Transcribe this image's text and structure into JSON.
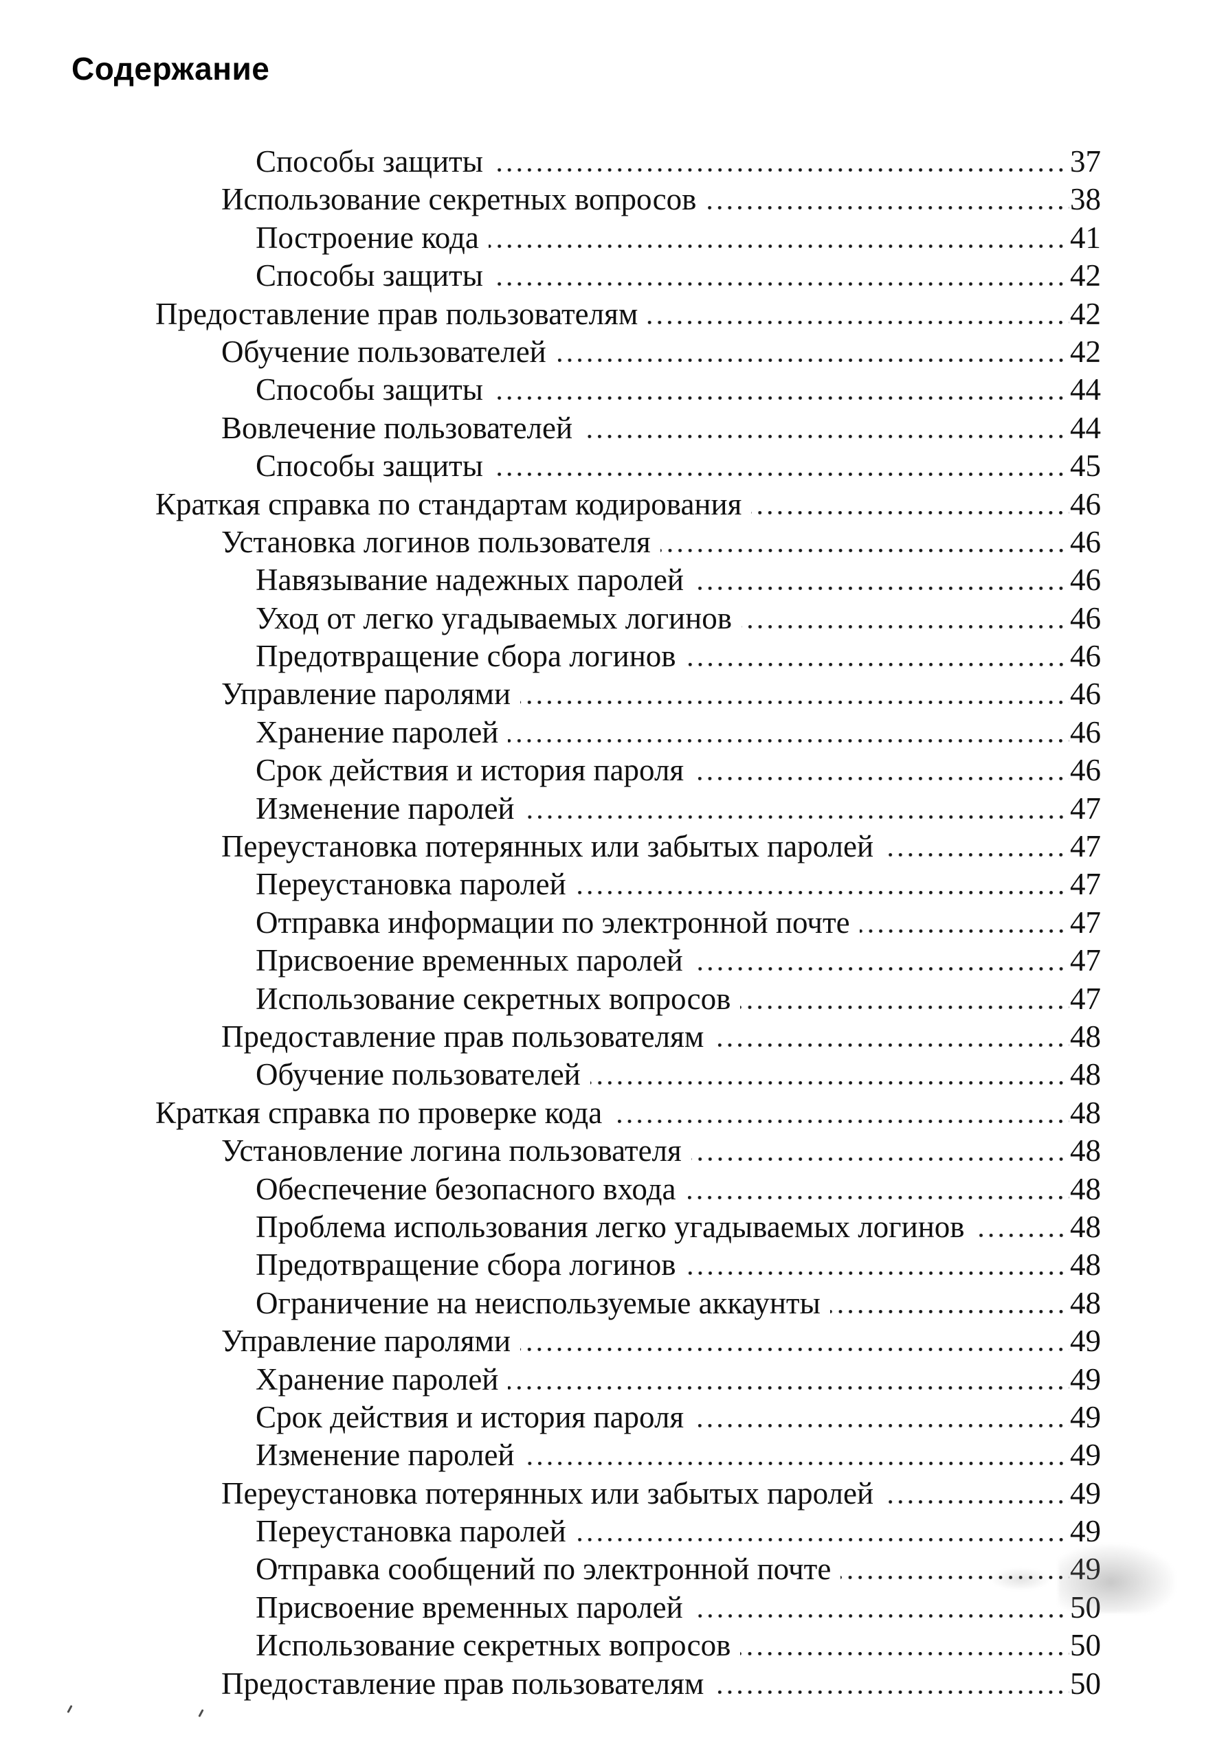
{
  "page": {
    "title": "Содержание"
  },
  "toc": {
    "entries": [
      {
        "level": 3,
        "label": "Способы защиты",
        "page": "37"
      },
      {
        "level": 2,
        "label": "Использование секретных вопросов",
        "page": "38"
      },
      {
        "level": 3,
        "label": "Построение кода",
        "page": "41"
      },
      {
        "level": 3,
        "label": "Способы защиты",
        "page": "42"
      },
      {
        "level": 1,
        "label": "Предоставление прав пользователям",
        "page": "42"
      },
      {
        "level": 2,
        "label": "Обучение пользователей",
        "page": "42"
      },
      {
        "level": 3,
        "label": "Способы защиты",
        "page": "44"
      },
      {
        "level": 2,
        "label": "Вовлечение пользователей",
        "page": "44"
      },
      {
        "level": 3,
        "label": "Способы защиты",
        "page": "45"
      },
      {
        "level": 1,
        "label": "Краткая справка по стандартам кодирования",
        "page": "46"
      },
      {
        "level": 2,
        "label": "Установка логинов пользователя",
        "page": "46"
      },
      {
        "level": 3,
        "label": "Навязывание надежных паролей",
        "page": "46"
      },
      {
        "level": 3,
        "label": "Уход от легко угадываемых логинов",
        "page": "46"
      },
      {
        "level": 3,
        "label": "Предотвращение сбора логинов",
        "page": "46"
      },
      {
        "level": 2,
        "label": "Управление паролями",
        "page": "46"
      },
      {
        "level": 3,
        "label": "Хранение паролей",
        "page": "46"
      },
      {
        "level": 3,
        "label": "Срок действия и история пароля",
        "page": "46"
      },
      {
        "level": 3,
        "label": "Изменение паролей",
        "page": "47"
      },
      {
        "level": 2,
        "label": "Переустановка потерянных или забытых паролей",
        "page": "47"
      },
      {
        "level": 3,
        "label": "Переустановка паролей",
        "page": "47"
      },
      {
        "level": 3,
        "label": "Отправка информации по электронной почте",
        "page": "47"
      },
      {
        "level": 3,
        "label": "Присвоение временных паролей",
        "page": "47"
      },
      {
        "level": 3,
        "label": "Использование секретных вопросов",
        "page": "47"
      },
      {
        "level": 2,
        "label": "Предоставление прав пользователям",
        "page": "48"
      },
      {
        "level": 3,
        "label": "Обучение пользователей",
        "page": "48"
      },
      {
        "level": 1,
        "label": "Краткая справка по проверке кода",
        "page": "48"
      },
      {
        "level": 2,
        "label": "Установление логина пользователя",
        "page": "48"
      },
      {
        "level": 3,
        "label": "Обеспечение безопасного входа",
        "page": "48"
      },
      {
        "level": 3,
        "label": "Проблема использования легко угадываемых логинов",
        "page": "48"
      },
      {
        "level": 3,
        "label": "Предотвращение сбора логинов",
        "page": "48"
      },
      {
        "level": 3,
        "label": "Ограничение на неиспользуемые аккаунты",
        "page": "48"
      },
      {
        "level": 2,
        "label": "Управление паролями",
        "page": "49"
      },
      {
        "level": 3,
        "label": "Хранение паролей",
        "page": "49"
      },
      {
        "level": 3,
        "label": "Срок действия и история пароля",
        "page": "49"
      },
      {
        "level": 3,
        "label": "Изменение паролей",
        "page": "49"
      },
      {
        "level": 2,
        "label": "Переустановка потерянных или забытых паролей",
        "page": "49"
      },
      {
        "level": 3,
        "label": "Переустановка паролей",
        "page": "49"
      },
      {
        "level": 3,
        "label": "Отправка сообщений по электронной почте",
        "page": "49"
      },
      {
        "level": 3,
        "label": "Присвоение временных паролей",
        "page": "50"
      },
      {
        "level": 3,
        "label": "Использование секретных вопросов",
        "page": "50"
      },
      {
        "level": 2,
        "label": "Предоставление прав пользователям",
        "page": "50"
      }
    ]
  }
}
